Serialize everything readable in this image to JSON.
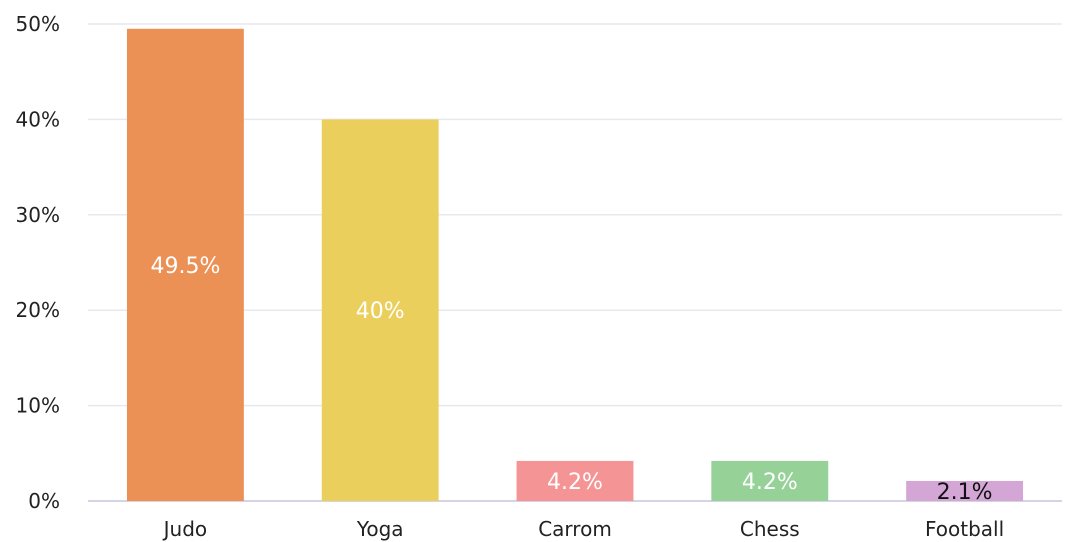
{
  "chart_data": {
    "type": "bar",
    "categories": [
      "Judo",
      "Yoga",
      "Carrom",
      "Chess",
      "Football"
    ],
    "values": [
      49.5,
      40,
      4.2,
      4.2,
      2.1
    ],
    "data_labels": [
      "49.5%",
      "40%",
      "4.2%",
      "4.2%",
      "2.1%"
    ],
    "colors": [
      "#ec9155",
      "#ebcf5c",
      "#f49494",
      "#96d298",
      "#d3a6d6"
    ],
    "label_colors": [
      "#ffffff",
      "#ffffff",
      "#ffffff",
      "#ffffff",
      "#111111"
    ],
    "ylim": [
      0,
      50
    ],
    "yticks": [
      0,
      10,
      20,
      30,
      40,
      50
    ],
    "ytick_labels": [
      "0%",
      "10%",
      "20%",
      "30%",
      "40%",
      "50%"
    ],
    "grid": true,
    "title": "",
    "xlabel": "",
    "ylabel": ""
  }
}
